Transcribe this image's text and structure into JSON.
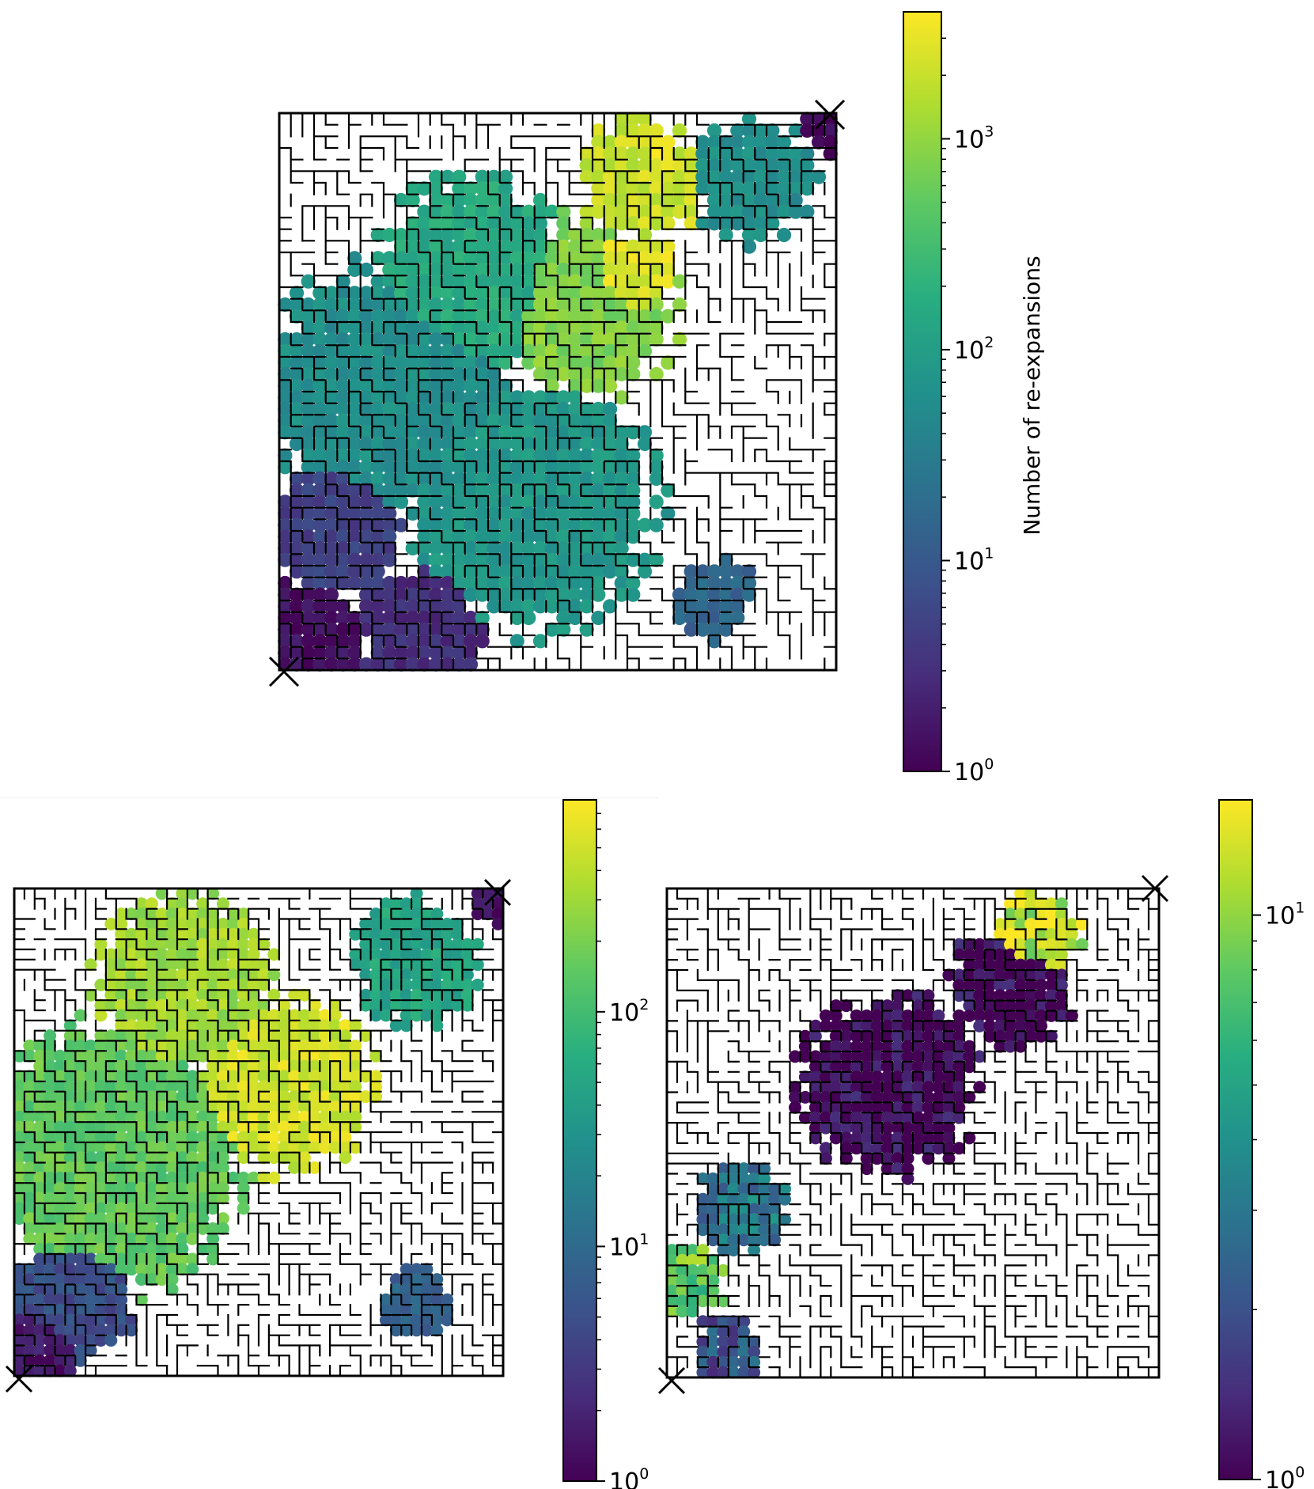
{
  "chart_data": [
    {
      "type": "heatmap",
      "panel": "top",
      "description_grid": "maze grid with explored cells colored by number of re-expansions (log scale)",
      "grid_size": 48,
      "start_marker": "×",
      "goal_marker": "×",
      "colormap": "viridis",
      "color_scale": "log",
      "clim": [
        1,
        4000
      ],
      "colorbar": {
        "label": "Number of re-expansions",
        "ticks": [
          {
            "base": "10",
            "exp": "0",
            "value": 1
          },
          {
            "base": "10",
            "exp": "1",
            "value": 10
          },
          {
            "base": "10",
            "exp": "2",
            "value": 100
          },
          {
            "base": "10",
            "exp": "3",
            "value": 1000
          }
        ]
      },
      "regions": [
        {
          "cx": 0.05,
          "cy": 0.94,
          "r": 0.12,
          "value": 1.5
        },
        {
          "cx": 0.1,
          "cy": 0.75,
          "r": 0.14,
          "value": 5
        },
        {
          "cx": 0.25,
          "cy": 0.92,
          "r": 0.12,
          "value": 3
        },
        {
          "cx": 0.2,
          "cy": 0.5,
          "r": 0.25,
          "value": 60
        },
        {
          "cx": 0.45,
          "cy": 0.7,
          "r": 0.25,
          "value": 80
        },
        {
          "cx": 0.35,
          "cy": 0.3,
          "r": 0.2,
          "value": 150
        },
        {
          "cx": 0.55,
          "cy": 0.35,
          "r": 0.18,
          "value": 800
        },
        {
          "cx": 0.62,
          "cy": 0.3,
          "r": 0.1,
          "value": 2500
        },
        {
          "cx": 0.65,
          "cy": 0.12,
          "r": 0.12,
          "value": 2000
        },
        {
          "cx": 0.68,
          "cy": 0.08,
          "r": 0.05,
          "value": 3500
        },
        {
          "cx": 0.85,
          "cy": 0.12,
          "r": 0.12,
          "value": 60
        },
        {
          "cx": 0.99,
          "cy": 0.03,
          "r": 0.05,
          "value": 1.2
        },
        {
          "cx": 0.78,
          "cy": 0.87,
          "r": 0.08,
          "value": 15
        }
      ]
    },
    {
      "type": "heatmap",
      "panel": "bottom-left",
      "grid_size": 48,
      "start_marker": "×",
      "goal_marker": "×",
      "colormap": "viridis",
      "color_scale": "log",
      "clim": [
        1,
        800
      ],
      "colorbar": {
        "label": "",
        "ticks": [
          {
            "base": "10",
            "exp": "0",
            "value": 1
          },
          {
            "base": "10",
            "exp": "1",
            "value": 10
          },
          {
            "base": "10",
            "exp": "2",
            "value": 100
          }
        ]
      },
      "regions": [
        {
          "cx": 0.05,
          "cy": 0.95,
          "r": 0.1,
          "value": 1.5
        },
        {
          "cx": 0.12,
          "cy": 0.85,
          "r": 0.14,
          "value": 5
        },
        {
          "cx": 0.2,
          "cy": 0.55,
          "r": 0.3,
          "value": 150
        },
        {
          "cx": 0.35,
          "cy": 0.2,
          "r": 0.2,
          "value": 300
        },
        {
          "cx": 0.55,
          "cy": 0.4,
          "r": 0.2,
          "value": 500
        },
        {
          "cx": 0.82,
          "cy": 0.15,
          "r": 0.14,
          "value": 50
        },
        {
          "cx": 0.99,
          "cy": 0.03,
          "r": 0.05,
          "value": 1.2
        },
        {
          "cx": 0.82,
          "cy": 0.85,
          "r": 0.08,
          "value": 8
        }
      ]
    },
    {
      "type": "heatmap",
      "panel": "bottom-right",
      "grid_size": 48,
      "start_marker": "×",
      "goal_marker": "×",
      "colormap": "viridis",
      "color_scale": "log",
      "clim": [
        1,
        16
      ],
      "colorbar": {
        "label": "",
        "ticks": [
          {
            "base": "10",
            "exp": "0",
            "value": 1
          },
          {
            "base": "10",
            "exp": "1",
            "value": 10
          }
        ]
      },
      "regions": [
        {
          "cx": 0.45,
          "cy": 0.4,
          "r": 0.2,
          "value": 1
        },
        {
          "cx": 0.7,
          "cy": 0.2,
          "r": 0.14,
          "value": 1
        },
        {
          "cx": 0.75,
          "cy": 0.1,
          "r": 0.1,
          "value": 12
        },
        {
          "cx": 0.15,
          "cy": 0.65,
          "r": 0.1,
          "value": 3
        },
        {
          "cx": 0.05,
          "cy": 0.8,
          "r": 0.08,
          "value": 8
        },
        {
          "cx": 0.12,
          "cy": 0.95,
          "r": 0.08,
          "value": 2
        }
      ]
    }
  ]
}
